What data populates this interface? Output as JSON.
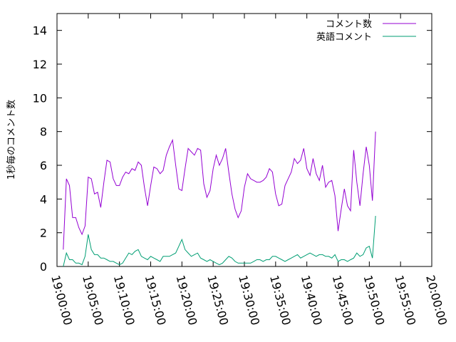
{
  "chart_data": {
    "type": "line",
    "title": "",
    "xlabel": "",
    "ylabel": "1秒毎のコメント数",
    "xlim": [
      "19:00:00",
      "20:00:00"
    ],
    "ylim": [
      0,
      15
    ],
    "x_ticks": [
      "19:00:00",
      "19:05:00",
      "19:10:00",
      "19:15:00",
      "19:20:00",
      "19:25:00",
      "19:30:00",
      "19:35:00",
      "19:40:00",
      "19:45:00",
      "19:50:00",
      "19:55:00",
      "20:00:00"
    ],
    "y_ticks": [
      0,
      2,
      4,
      6,
      8,
      10,
      12,
      14
    ],
    "legend_position": "top-right",
    "grid": false,
    "series": [
      {
        "name": "コメント数",
        "color": "#9400d3",
        "points": [
          [
            "19:01:00",
            1.0
          ],
          [
            "19:01:30",
            5.2
          ],
          [
            "19:02:00",
            4.8
          ],
          [
            "19:02:30",
            2.9
          ],
          [
            "19:03:00",
            2.9
          ],
          [
            "19:03:30",
            2.3
          ],
          [
            "19:04:00",
            1.9
          ],
          [
            "19:04:30",
            2.4
          ],
          [
            "19:05:00",
            5.3
          ],
          [
            "19:05:30",
            5.2
          ],
          [
            "19:06:00",
            4.3
          ],
          [
            "19:06:30",
            4.4
          ],
          [
            "19:07:00",
            3.5
          ],
          [
            "19:07:30",
            5.0
          ],
          [
            "19:08:00",
            6.3
          ],
          [
            "19:08:30",
            6.2
          ],
          [
            "19:09:00",
            5.2
          ],
          [
            "19:09:30",
            4.8
          ],
          [
            "19:10:00",
            4.8
          ],
          [
            "19:10:30",
            5.3
          ],
          [
            "19:11:00",
            5.6
          ],
          [
            "19:11:30",
            5.5
          ],
          [
            "19:12:00",
            5.8
          ],
          [
            "19:12:30",
            5.7
          ],
          [
            "19:13:00",
            6.2
          ],
          [
            "19:13:30",
            6.0
          ],
          [
            "19:14:00",
            4.7
          ],
          [
            "19:14:30",
            3.6
          ],
          [
            "19:15:00",
            4.8
          ],
          [
            "19:15:30",
            5.9
          ],
          [
            "19:16:00",
            5.8
          ],
          [
            "19:16:30",
            5.5
          ],
          [
            "19:17:00",
            5.7
          ],
          [
            "19:17:30",
            6.6
          ],
          [
            "19:18:00",
            7.1
          ],
          [
            "19:18:30",
            7.5
          ],
          [
            "19:19:00",
            6.0
          ],
          [
            "19:19:30",
            4.6
          ],
          [
            "19:20:00",
            4.5
          ],
          [
            "19:20:30",
            5.8
          ],
          [
            "19:21:00",
            7.0
          ],
          [
            "19:21:30",
            6.8
          ],
          [
            "19:22:00",
            6.6
          ],
          [
            "19:22:30",
            7.0
          ],
          [
            "19:23:00",
            6.9
          ],
          [
            "19:23:30",
            4.9
          ],
          [
            "19:24:00",
            4.1
          ],
          [
            "19:24:30",
            4.5
          ],
          [
            "19:25:00",
            5.8
          ],
          [
            "19:25:30",
            6.6
          ],
          [
            "19:26:00",
            6.0
          ],
          [
            "19:26:30",
            6.4
          ],
          [
            "19:27:00",
            7.0
          ],
          [
            "19:27:30",
            5.6
          ],
          [
            "19:28:00",
            4.3
          ],
          [
            "19:28:30",
            3.4
          ],
          [
            "19:29:00",
            2.9
          ],
          [
            "19:29:30",
            3.3
          ],
          [
            "19:30:00",
            4.7
          ],
          [
            "19:30:30",
            5.5
          ],
          [
            "19:31:00",
            5.2
          ],
          [
            "19:31:30",
            5.1
          ],
          [
            "19:32:00",
            5.0
          ],
          [
            "19:32:30",
            5.0
          ],
          [
            "19:33:00",
            5.1
          ],
          [
            "19:33:30",
            5.3
          ],
          [
            "19:34:00",
            5.8
          ],
          [
            "19:34:30",
            5.6
          ],
          [
            "19:35:00",
            4.3
          ],
          [
            "19:35:30",
            3.6
          ],
          [
            "19:36:00",
            3.7
          ],
          [
            "19:36:30",
            4.8
          ],
          [
            "19:37:00",
            5.2
          ],
          [
            "19:37:30",
            5.6
          ],
          [
            "19:38:00",
            6.4
          ],
          [
            "19:38:30",
            6.1
          ],
          [
            "19:39:00",
            6.3
          ],
          [
            "19:39:30",
            7.0
          ],
          [
            "19:40:00",
            5.8
          ],
          [
            "19:40:30",
            5.4
          ],
          [
            "19:41:00",
            6.4
          ],
          [
            "19:41:30",
            5.5
          ],
          [
            "19:42:00",
            5.1
          ],
          [
            "19:42:30",
            6.0
          ],
          [
            "19:43:00",
            4.7
          ],
          [
            "19:43:30",
            5.0
          ],
          [
            "19:44:00",
            5.1
          ],
          [
            "19:44:30",
            4.2
          ],
          [
            "19:45:00",
            2.1
          ],
          [
            "19:45:30",
            3.4
          ],
          [
            "19:46:00",
            4.6
          ],
          [
            "19:46:30",
            3.6
          ],
          [
            "19:47:00",
            3.3
          ],
          [
            "19:47:30",
            6.9
          ],
          [
            "19:48:00",
            5.0
          ],
          [
            "19:48:30",
            3.6
          ],
          [
            "19:49:00",
            5.5
          ],
          [
            "19:49:30",
            7.1
          ],
          [
            "19:50:00",
            6.0
          ],
          [
            "19:50:30",
            3.9
          ],
          [
            "19:51:00",
            8.0
          ]
        ]
      },
      {
        "name": "英語コメント",
        "color": "#009e73",
        "points": [
          [
            "19:01:00",
            0.0
          ],
          [
            "19:01:30",
            0.8
          ],
          [
            "19:02:00",
            0.4
          ],
          [
            "19:02:30",
            0.4
          ],
          [
            "19:03:00",
            0.2
          ],
          [
            "19:03:30",
            0.2
          ],
          [
            "19:04:00",
            0.1
          ],
          [
            "19:04:30",
            0.6
          ],
          [
            "19:05:00",
            1.9
          ],
          [
            "19:05:30",
            1.0
          ],
          [
            "19:06:00",
            0.7
          ],
          [
            "19:06:30",
            0.7
          ],
          [
            "19:07:00",
            0.5
          ],
          [
            "19:07:30",
            0.5
          ],
          [
            "19:08:00",
            0.4
          ],
          [
            "19:08:30",
            0.3
          ],
          [
            "19:09:00",
            0.3
          ],
          [
            "19:09:30",
            0.2
          ],
          [
            "19:10:00",
            0.1
          ],
          [
            "19:10:30",
            0.2
          ],
          [
            "19:11:00",
            0.5
          ],
          [
            "19:11:30",
            0.8
          ],
          [
            "19:12:00",
            0.7
          ],
          [
            "19:12:30",
            0.9
          ],
          [
            "19:13:00",
            1.0
          ],
          [
            "19:13:30",
            0.6
          ],
          [
            "19:14:00",
            0.5
          ],
          [
            "19:14:30",
            0.4
          ],
          [
            "19:15:00",
            0.6
          ],
          [
            "19:15:30",
            0.5
          ],
          [
            "19:16:00",
            0.4
          ],
          [
            "19:16:30",
            0.3
          ],
          [
            "19:17:00",
            0.6
          ],
          [
            "19:17:30",
            0.6
          ],
          [
            "19:18:00",
            0.6
          ],
          [
            "19:18:30",
            0.7
          ],
          [
            "19:19:00",
            0.8
          ],
          [
            "19:19:30",
            1.2
          ],
          [
            "19:20:00",
            1.6
          ],
          [
            "19:20:30",
            1.0
          ],
          [
            "19:21:00",
            0.8
          ],
          [
            "19:21:30",
            0.6
          ],
          [
            "19:22:00",
            0.7
          ],
          [
            "19:22:30",
            0.8
          ],
          [
            "19:23:00",
            0.5
          ],
          [
            "19:23:30",
            0.4
          ],
          [
            "19:24:00",
            0.3
          ],
          [
            "19:24:30",
            0.4
          ],
          [
            "19:25:00",
            0.3
          ],
          [
            "19:25:30",
            0.2
          ],
          [
            "19:26:00",
            0.1
          ],
          [
            "19:26:30",
            0.2
          ],
          [
            "19:27:00",
            0.4
          ],
          [
            "19:27:30",
            0.6
          ],
          [
            "19:28:00",
            0.5
          ],
          [
            "19:28:30",
            0.3
          ],
          [
            "19:29:00",
            0.2
          ],
          [
            "19:29:30",
            0.2
          ],
          [
            "19:30:00",
            0.2
          ],
          [
            "19:30:30",
            0.2
          ],
          [
            "19:31:00",
            0.2
          ],
          [
            "19:31:30",
            0.3
          ],
          [
            "19:32:00",
            0.4
          ],
          [
            "19:32:30",
            0.4
          ],
          [
            "19:33:00",
            0.3
          ],
          [
            "19:33:30",
            0.4
          ],
          [
            "19:34:00",
            0.4
          ],
          [
            "19:34:30",
            0.6
          ],
          [
            "19:35:00",
            0.6
          ],
          [
            "19:35:30",
            0.5
          ],
          [
            "19:36:00",
            0.4
          ],
          [
            "19:36:30",
            0.3
          ],
          [
            "19:37:00",
            0.4
          ],
          [
            "19:37:30",
            0.5
          ],
          [
            "19:38:00",
            0.6
          ],
          [
            "19:38:30",
            0.7
          ],
          [
            "19:39:00",
            0.5
          ],
          [
            "19:39:30",
            0.6
          ],
          [
            "19:40:00",
            0.7
          ],
          [
            "19:40:30",
            0.8
          ],
          [
            "19:41:00",
            0.7
          ],
          [
            "19:41:30",
            0.6
          ],
          [
            "19:42:00",
            0.7
          ],
          [
            "19:42:30",
            0.7
          ],
          [
            "19:43:00",
            0.6
          ],
          [
            "19:43:30",
            0.6
          ],
          [
            "19:44:00",
            0.5
          ],
          [
            "19:44:30",
            0.7
          ],
          [
            "19:45:00",
            0.3
          ],
          [
            "19:45:30",
            0.4
          ],
          [
            "19:46:00",
            0.4
          ],
          [
            "19:46:30",
            0.3
          ],
          [
            "19:47:00",
            0.4
          ],
          [
            "19:47:30",
            0.5
          ],
          [
            "19:48:00",
            0.8
          ],
          [
            "19:48:30",
            0.6
          ],
          [
            "19:49:00",
            0.7
          ],
          [
            "19:49:30",
            1.1
          ],
          [
            "19:50:00",
            1.2
          ],
          [
            "19:50:30",
            0.5
          ],
          [
            "19:51:00",
            3.0
          ]
        ]
      }
    ]
  }
}
